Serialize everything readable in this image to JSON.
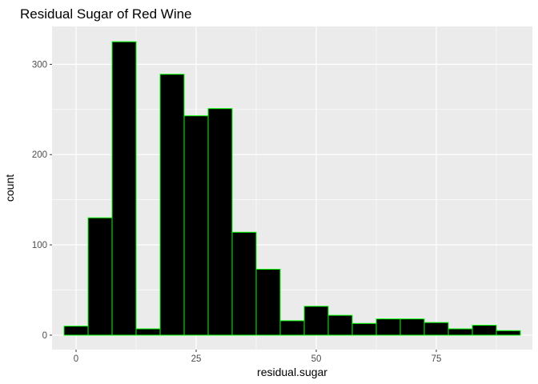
{
  "chart_data": {
    "type": "bar",
    "title": "Residual Sugar of Red Wine",
    "xlabel": "residual.sugar",
    "ylabel": "count",
    "bin_width": 5,
    "bins": [
      {
        "center": 0,
        "count": 10
      },
      {
        "center": 5,
        "count": 130
      },
      {
        "center": 10,
        "count": 325
      },
      {
        "center": 15,
        "count": 7
      },
      {
        "center": 20,
        "count": 289
      },
      {
        "center": 25,
        "count": 243
      },
      {
        "center": 30,
        "count": 251
      },
      {
        "center": 35,
        "count": 114
      },
      {
        "center": 40,
        "count": 73
      },
      {
        "center": 45,
        "count": 16
      },
      {
        "center": 50,
        "count": 32
      },
      {
        "center": 55,
        "count": 22
      },
      {
        "center": 60,
        "count": 13
      },
      {
        "center": 65,
        "count": 18
      },
      {
        "center": 70,
        "count": 18
      },
      {
        "center": 75,
        "count": 14
      },
      {
        "center": 80,
        "count": 7
      },
      {
        "center": 85,
        "count": 11
      },
      {
        "center": 90,
        "count": 5
      }
    ],
    "xlim": [
      -5,
      95
    ],
    "ylim": [
      -16,
      342
    ],
    "xticks": [
      0,
      25,
      50,
      75
    ],
    "yticks": [
      0,
      100,
      200,
      300
    ],
    "xticks_labels": [
      "0",
      "25",
      "50",
      "75"
    ],
    "yticks_labels": [
      "0",
      "100",
      "200",
      "300"
    ],
    "grid": true,
    "colors": {
      "panel_background": "#ebebeb",
      "grid_major": "#ffffff",
      "bar_fill": "#000000",
      "bar_outline": "#00ff00"
    }
  }
}
